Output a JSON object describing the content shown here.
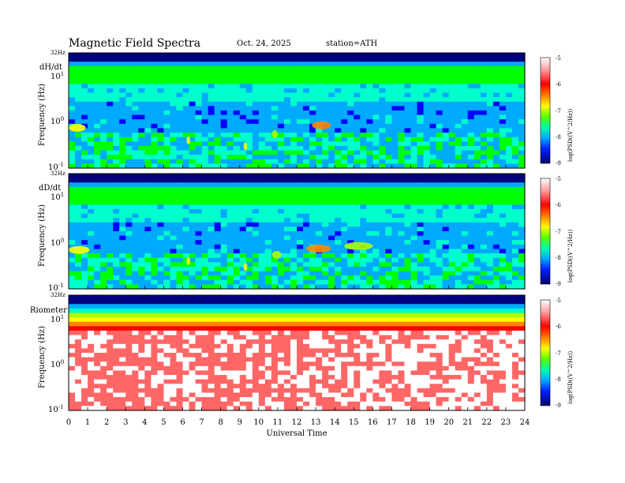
{
  "header": {
    "title": "Magnetic  Field  Spectra",
    "date": "Oct. 24, 2025",
    "station": "station=ATH"
  },
  "x_axis_label": "Universal Time",
  "colors": {
    "scale": [
      "#000080",
      "#0000ff",
      "#00aaff",
      "#00ffcc",
      "#00ff00",
      "#aaff00",
      "#ffff00",
      "#ff8800",
      "#ff0000",
      "#ff6666",
      "#ffffff"
    ]
  },
  "chart_data": [
    {
      "type": "heatmap",
      "panel_label": "dH/dt",
      "top_label": "32Hz",
      "ylabel": "Frequency (Hz)",
      "y_ticks": [
        {
          "base": "10",
          "exp": "1"
        },
        {
          "base": "10",
          "exp": "0"
        },
        {
          "base": "10",
          "exp": "-1"
        }
      ],
      "x_ticks": [
        "0",
        "1",
        "2",
        "3",
        "4",
        "5",
        "6",
        "7",
        "8",
        "9",
        "10",
        "11",
        "12",
        "13",
        "14",
        "15",
        "16",
        "17",
        "18",
        "19",
        "20",
        "21",
        "22",
        "23",
        "24"
      ],
      "xlim": [
        0,
        24
      ],
      "ylim": [
        0.1,
        32
      ],
      "y_scale": "log",
      "colorbar": {
        "label": "log(PSD((V^2/Hz))",
        "ticks": [
          "-5",
          "-6",
          "-7",
          "-8",
          "-9"
        ],
        "range": [
          -9,
          -5
        ]
      },
      "features": [
        {
          "time_range": [
            0.0,
            0.9
          ],
          "freq": 0.75,
          "level": -6.5
        },
        {
          "time_range": [
            6.2,
            6.4
          ],
          "freq": 0.4,
          "level": -6.8
        },
        {
          "time_range": [
            9.2,
            9.4
          ],
          "freq": 0.3,
          "level": -6.8
        },
        {
          "time_range": [
            10.7,
            11.0
          ],
          "freq": 0.55,
          "level": -7.0
        },
        {
          "time_range": [
            12.8,
            13.8
          ],
          "freq": 0.85,
          "level": -6.2
        }
      ]
    },
    {
      "type": "heatmap",
      "panel_label": "dD/dt",
      "top_label": "32Hz",
      "ylabel": "Frequency (Hz)",
      "y_ticks": [
        {
          "base": "10",
          "exp": "1"
        },
        {
          "base": "10",
          "exp": "0"
        },
        {
          "base": "10",
          "exp": "-1"
        }
      ],
      "x_ticks": [
        "0",
        "1",
        "2",
        "3",
        "4",
        "5",
        "6",
        "7",
        "8",
        "9",
        "10",
        "11",
        "12",
        "13",
        "14",
        "15",
        "16",
        "17",
        "18",
        "19",
        "20",
        "21",
        "22",
        "23",
        "24"
      ],
      "xlim": [
        0,
        24
      ],
      "ylim": [
        0.1,
        32
      ],
      "y_scale": "log",
      "colorbar": {
        "label": "log(PSD((V^2/Hz))",
        "ticks": [
          "-5",
          "-6",
          "-7",
          "-8",
          "-9"
        ],
        "range": [
          -9,
          -5
        ]
      },
      "features": [
        {
          "time_range": [
            0.0,
            1.1
          ],
          "freq": 0.7,
          "level": -6.5
        },
        {
          "time_range": [
            6.2,
            6.4
          ],
          "freq": 0.4,
          "level": -6.8
        },
        {
          "time_range": [
            9.2,
            9.4
          ],
          "freq": 0.3,
          "level": -6.8
        },
        {
          "time_range": [
            10.7,
            11.2
          ],
          "freq": 0.55,
          "level": -7.0
        },
        {
          "time_range": [
            12.5,
            13.8
          ],
          "freq": 0.75,
          "level": -6.2
        },
        {
          "time_range": [
            14.5,
            16.0
          ],
          "freq": 0.85,
          "level": -7.2
        }
      ]
    },
    {
      "type": "heatmap",
      "panel_label": "Riometer",
      "top_label": "32Hz",
      "ylabel": "Frequency (Hz)",
      "y_ticks": [
        {
          "base": "10",
          "exp": "1"
        },
        {
          "base": "10",
          "exp": "0"
        },
        {
          "base": "10",
          "exp": "-1"
        }
      ],
      "x_ticks": [
        "0",
        "1",
        "2",
        "3",
        "4",
        "5",
        "6",
        "7",
        "8",
        "9",
        "10",
        "11",
        "12",
        "13",
        "14",
        "15",
        "16",
        "17",
        "18",
        "19",
        "20",
        "21",
        "22",
        "23",
        "24"
      ],
      "xlim": [
        0,
        24
      ],
      "ylim": [
        0.1,
        32
      ],
      "y_scale": "log",
      "colorbar": {
        "label": "log(PSD((V^2/Hz))",
        "ticks": [
          "-5",
          "-6",
          "-7",
          "-8",
          "-9"
        ],
        "range": [
          -9,
          -5
        ]
      },
      "features": [
        {
          "time_range": [
            0.0,
            15.2
          ],
          "freq": 1.0,
          "level": -5.2
        },
        {
          "time_range": [
            16.0,
            24.0
          ],
          "freq": 5.0,
          "level": -5.8
        }
      ]
    }
  ]
}
